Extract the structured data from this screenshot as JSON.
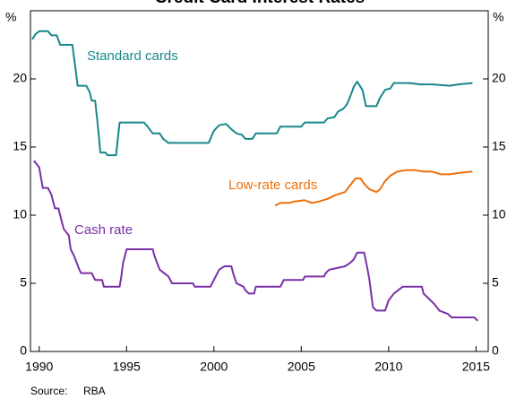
{
  "chart_data": {
    "type": "line",
    "title": "Credit Card Interest Rates",
    "ylabel": "%",
    "y2label": "%",
    "source_label": "Source:",
    "source": "RBA",
    "xlim": [
      1989.5,
      2015.7
    ],
    "xticks": [
      1990,
      1995,
      2000,
      2005,
      2010,
      2015
    ],
    "ylim": [
      0,
      25
    ],
    "yticks": [
      0,
      5,
      10,
      15,
      20
    ],
    "y2lim": [
      0,
      25
    ],
    "y2ticks": [
      0,
      5,
      10,
      15,
      20
    ],
    "series": [
      {
        "name": "Standard cards",
        "color": "#17878c",
        "x": [
          1989.6,
          1989.8,
          1990.0,
          1990.5,
          1990.7,
          1991.0,
          1991.2,
          1991.9,
          1992.0,
          1992.2,
          1992.7,
          1992.9,
          1993.0,
          1993.2,
          1993.4,
          1993.5,
          1993.8,
          1993.9,
          1994.4,
          1994.6,
          1996.0,
          1996.2,
          1996.5,
          1996.9,
          1997.1,
          1997.4,
          1999.7,
          2000.0,
          2000.3,
          2000.7,
          2001.0,
          2001.3,
          2001.6,
          2001.8,
          2002.2,
          2002.4,
          2003.6,
          2003.8,
          2005.0,
          2005.2,
          2006.3,
          2006.5,
          2006.9,
          2007.1,
          2007.4,
          2007.6,
          2007.8,
          2008.0,
          2008.2,
          2008.5,
          2008.7,
          2009.3,
          2009.5,
          2009.8,
          2010.1,
          2010.3,
          2011.2,
          2011.8,
          2012.5,
          2013.5,
          2014.0,
          2014.8
        ],
        "values": [
          22.9,
          23.3,
          23.5,
          23.5,
          23.2,
          23.2,
          22.5,
          22.5,
          21.5,
          19.5,
          19.5,
          19.0,
          18.4,
          18.4,
          16.0,
          14.6,
          14.6,
          14.4,
          14.4,
          16.8,
          16.8,
          16.5,
          16.0,
          16.0,
          15.6,
          15.3,
          15.3,
          16.2,
          16.6,
          16.7,
          16.3,
          16.0,
          15.9,
          15.6,
          15.6,
          16.0,
          16.0,
          16.5,
          16.5,
          16.8,
          16.8,
          17.1,
          17.2,
          17.6,
          17.8,
          18.1,
          18.7,
          19.4,
          19.8,
          19.2,
          18.0,
          18.0,
          18.6,
          19.2,
          19.3,
          19.7,
          19.7,
          19.6,
          19.6,
          19.5,
          19.6,
          19.7
        ]
      },
      {
        "name": "Low-rate cards",
        "color": "#f0700a",
        "x": [
          2003.5,
          2003.8,
          2004.3,
          2004.6,
          2005.2,
          2005.6,
          2006.0,
          2006.5,
          2007.0,
          2007.5,
          2007.8,
          2008.1,
          2008.4,
          2008.6,
          2008.9,
          2009.3,
          2009.5,
          2009.8,
          2010.1,
          2010.5,
          2011.0,
          2011.5,
          2012.0,
          2012.5,
          2013.0,
          2013.5,
          2014.0,
          2014.8
        ],
        "values": [
          10.7,
          10.9,
          10.9,
          11.0,
          11.1,
          10.9,
          11.0,
          11.2,
          11.5,
          11.7,
          12.2,
          12.7,
          12.7,
          12.3,
          11.9,
          11.7,
          11.9,
          12.5,
          12.9,
          13.2,
          13.3,
          13.3,
          13.2,
          13.2,
          13.0,
          13.0,
          13.1,
          13.2
        ]
      },
      {
        "name": "Cash rate",
        "color": "#7a30a8",
        "x": [
          1989.7,
          1990.0,
          1990.2,
          1990.5,
          1990.7,
          1990.9,
          1991.1,
          1991.3,
          1991.4,
          1991.7,
          1991.8,
          1992.0,
          1992.3,
          1992.4,
          1993.0,
          1993.2,
          1993.6,
          1993.7,
          1994.6,
          1994.7,
          1994.8,
          1995.0,
          1996.5,
          1996.6,
          1996.9,
          1997.4,
          1997.6,
          1998.8,
          1998.9,
          1999.8,
          1999.9,
          2000.1,
          2000.3,
          2000.6,
          2001.0,
          2001.1,
          2001.3,
          2001.7,
          2001.8,
          2002.0,
          2002.3,
          2002.4,
          2003.8,
          2003.9,
          2004.0,
          2005.1,
          2005.2,
          2006.3,
          2006.4,
          2006.6,
          2007.5,
          2007.8,
          2008.0,
          2008.2,
          2008.6,
          2008.8,
          2008.9,
          2009.0,
          2009.1,
          2009.3,
          2009.8,
          2010.0,
          2010.3,
          2010.8,
          2011.9,
          2012.0,
          2012.4,
          2012.6,
          2012.9,
          2013.4,
          2013.6,
          2014.9,
          2015.1
        ],
        "values": [
          14.0,
          13.5,
          12.0,
          12.0,
          11.5,
          10.5,
          10.5,
          9.5,
          9.0,
          8.5,
          7.5,
          7.0,
          6.0,
          5.75,
          5.75,
          5.25,
          5.25,
          4.75,
          4.75,
          5.5,
          6.5,
          7.5,
          7.5,
          7.0,
          6.0,
          5.5,
          5.0,
          5.0,
          4.75,
          4.75,
          5.0,
          5.5,
          6.0,
          6.25,
          6.25,
          5.75,
          5.0,
          4.75,
          4.5,
          4.25,
          4.25,
          4.75,
          4.75,
          5.0,
          5.25,
          5.25,
          5.5,
          5.5,
          5.75,
          6.0,
          6.25,
          6.5,
          6.75,
          7.25,
          7.25,
          6.0,
          5.25,
          4.25,
          3.25,
          3.0,
          3.0,
          3.75,
          4.25,
          4.75,
          4.75,
          4.25,
          3.75,
          3.5,
          3.0,
          2.75,
          2.5,
          2.5,
          2.25
        ]
      }
    ]
  }
}
